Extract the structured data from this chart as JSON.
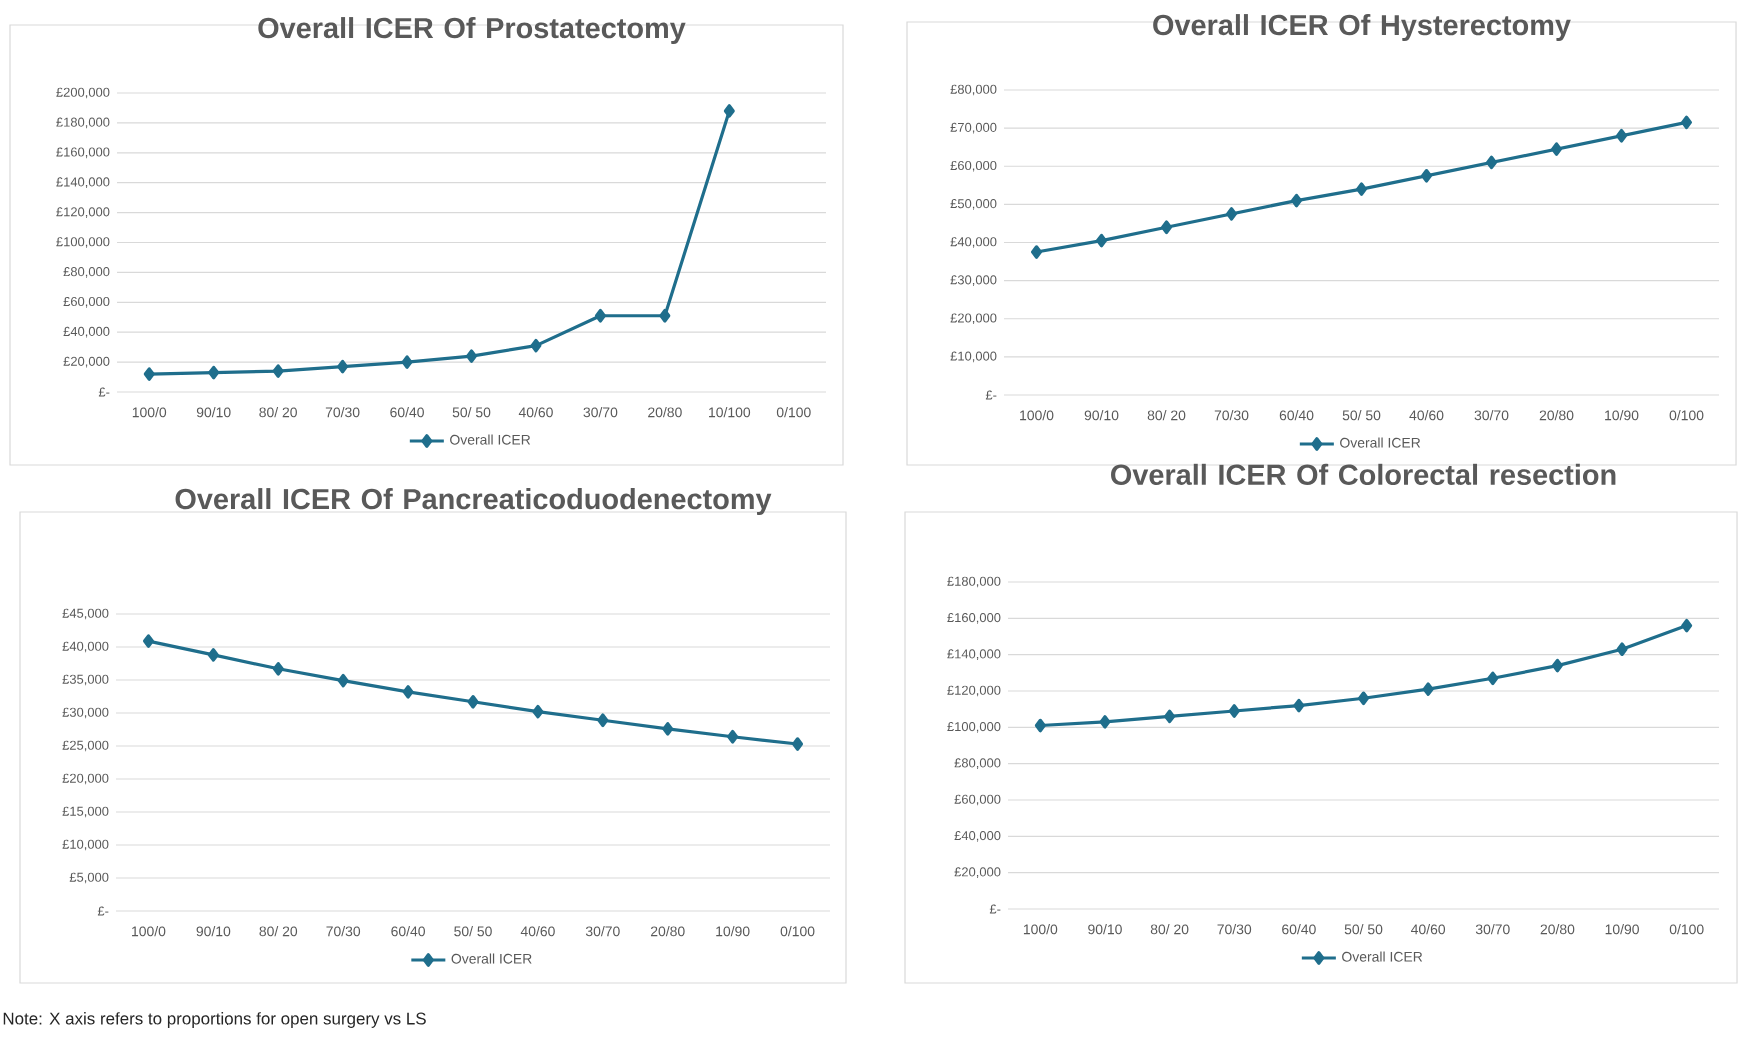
{
  "chart_data": [
    {
      "type": "line",
      "title": "Overall ICER Of Prostatectomy",
      "categories": [
        "100/0",
        "90/10",
        "80/ 20",
        "70/30",
        "60/40",
        "50/ 50",
        "40/60",
        "30/70",
        "20/80",
        "10/100",
        "0/100"
      ],
      "series": [
        {
          "name": "Overall ICER",
          "color": "#1f6e8c",
          "values": [
            12000,
            13000,
            14000,
            17000,
            20000,
            24000,
            31000,
            51000,
            51000,
            188000,
            null
          ]
        }
      ],
      "ylim": [
        0,
        200000
      ],
      "yticks": [
        {
          "value": 0,
          "label": "£-"
        },
        {
          "value": 20000,
          "label": "£20,000"
        },
        {
          "value": 40000,
          "label": "£40,000"
        },
        {
          "value": 60000,
          "label": "£60,000"
        },
        {
          "value": 80000,
          "label": "£80,000"
        },
        {
          "value": 100000,
          "label": "£100,000"
        },
        {
          "value": 120000,
          "label": "£120,000"
        },
        {
          "value": 140000,
          "label": "£140,000"
        },
        {
          "value": 160000,
          "label": "£160,000"
        },
        {
          "value": 180000,
          "label": "£180,000"
        },
        {
          "value": 200000,
          "label": "£200,000"
        }
      ],
      "grid": "y",
      "legend": "bottom",
      "marker": "diamond",
      "line_style": "solid"
    },
    {
      "type": "line",
      "title": "Overall ICER Of Hysterectomy",
      "categories": [
        "100/0",
        "90/10",
        "80/ 20",
        "70/30",
        "60/40",
        "50/ 50",
        "40/60",
        "30/70",
        "20/80",
        "10/90",
        "0/100"
      ],
      "series": [
        {
          "name": "Overall ICER",
          "color": "#1f6e8c",
          "values": [
            37500,
            40500,
            44000,
            47500,
            51000,
            54000,
            57500,
            61000,
            64500,
            68000,
            71500
          ]
        }
      ],
      "ylim": [
        0,
        80000
      ],
      "yticks": [
        {
          "value": 0,
          "label": "£-"
        },
        {
          "value": 10000,
          "label": "£10,000"
        },
        {
          "value": 20000,
          "label": "£20,000"
        },
        {
          "value": 30000,
          "label": "£30,000"
        },
        {
          "value": 40000,
          "label": "£40,000"
        },
        {
          "value": 50000,
          "label": "£50,000"
        },
        {
          "value": 60000,
          "label": "£60,000"
        },
        {
          "value": 70000,
          "label": "£70,000"
        },
        {
          "value": 80000,
          "label": "£80,000"
        }
      ],
      "grid": "y",
      "legend": "bottom",
      "marker": "diamond",
      "line_style": "solid"
    },
    {
      "type": "line",
      "title": "Overall ICER Of Pancreaticoduodenectomy",
      "categories": [
        "100/0",
        "90/10",
        "80/ 20",
        "70/30",
        "60/40",
        "50/ 50",
        "40/60",
        "30/70",
        "20/80",
        "10/90",
        "0/100"
      ],
      "series": [
        {
          "name": "Overall ICER",
          "color": "#1f6e8c",
          "values": [
            40900,
            38800,
            36700,
            34900,
            33200,
            31700,
            30200,
            28900,
            27600,
            26400,
            25300
          ]
        }
      ],
      "ylim": [
        0,
        45000
      ],
      "yticks": [
        {
          "value": 0,
          "label": "£-"
        },
        {
          "value": 5000,
          "label": "£5,000"
        },
        {
          "value": 10000,
          "label": "£10,000"
        },
        {
          "value": 15000,
          "label": "£15,000"
        },
        {
          "value": 20000,
          "label": "£20,000"
        },
        {
          "value": 25000,
          "label": "£25,000"
        },
        {
          "value": 30000,
          "label": "£30,000"
        },
        {
          "value": 35000,
          "label": "£35,000"
        },
        {
          "value": 40000,
          "label": "£40,000"
        },
        {
          "value": 45000,
          "label": "£45,000"
        }
      ],
      "grid": "y",
      "legend": "bottom",
      "marker": "diamond",
      "line_style": "solid",
      "annotations": [
        "Note: X axis refers to proportions for open surgery vs LS"
      ]
    },
    {
      "type": "line",
      "title": "Overall ICER Of Colorectal resection",
      "categories": [
        "100/0",
        "90/10",
        "80/ 20",
        "70/30",
        "60/40",
        "50/ 50",
        "40/60",
        "30/70",
        "20/80",
        "10/90",
        "0/100"
      ],
      "series": [
        {
          "name": "Overall ICER",
          "color": "#1f6e8c",
          "values": [
            101000,
            103000,
            106000,
            109000,
            112000,
            116000,
            121000,
            127000,
            134000,
            143000,
            156000
          ]
        }
      ],
      "ylim": [
        0,
        180000
      ],
      "yticks": [
        {
          "value": 0,
          "label": "£-"
        },
        {
          "value": 20000,
          "label": "£20,000"
        },
        {
          "value": 40000,
          "label": "£40,000"
        },
        {
          "value": 60000,
          "label": "£60,000"
        },
        {
          "value": 80000,
          "label": "£80,000"
        },
        {
          "value": 100000,
          "label": "£100,000"
        },
        {
          "value": 120000,
          "label": "£120,000"
        },
        {
          "value": 140000,
          "label": "£140,000"
        },
        {
          "value": 160000,
          "label": "£160,000"
        },
        {
          "value": 180000,
          "label": "£180,000"
        }
      ],
      "grid": "y",
      "legend": "bottom",
      "marker": "diamond",
      "line_style": "solid"
    }
  ]
}
